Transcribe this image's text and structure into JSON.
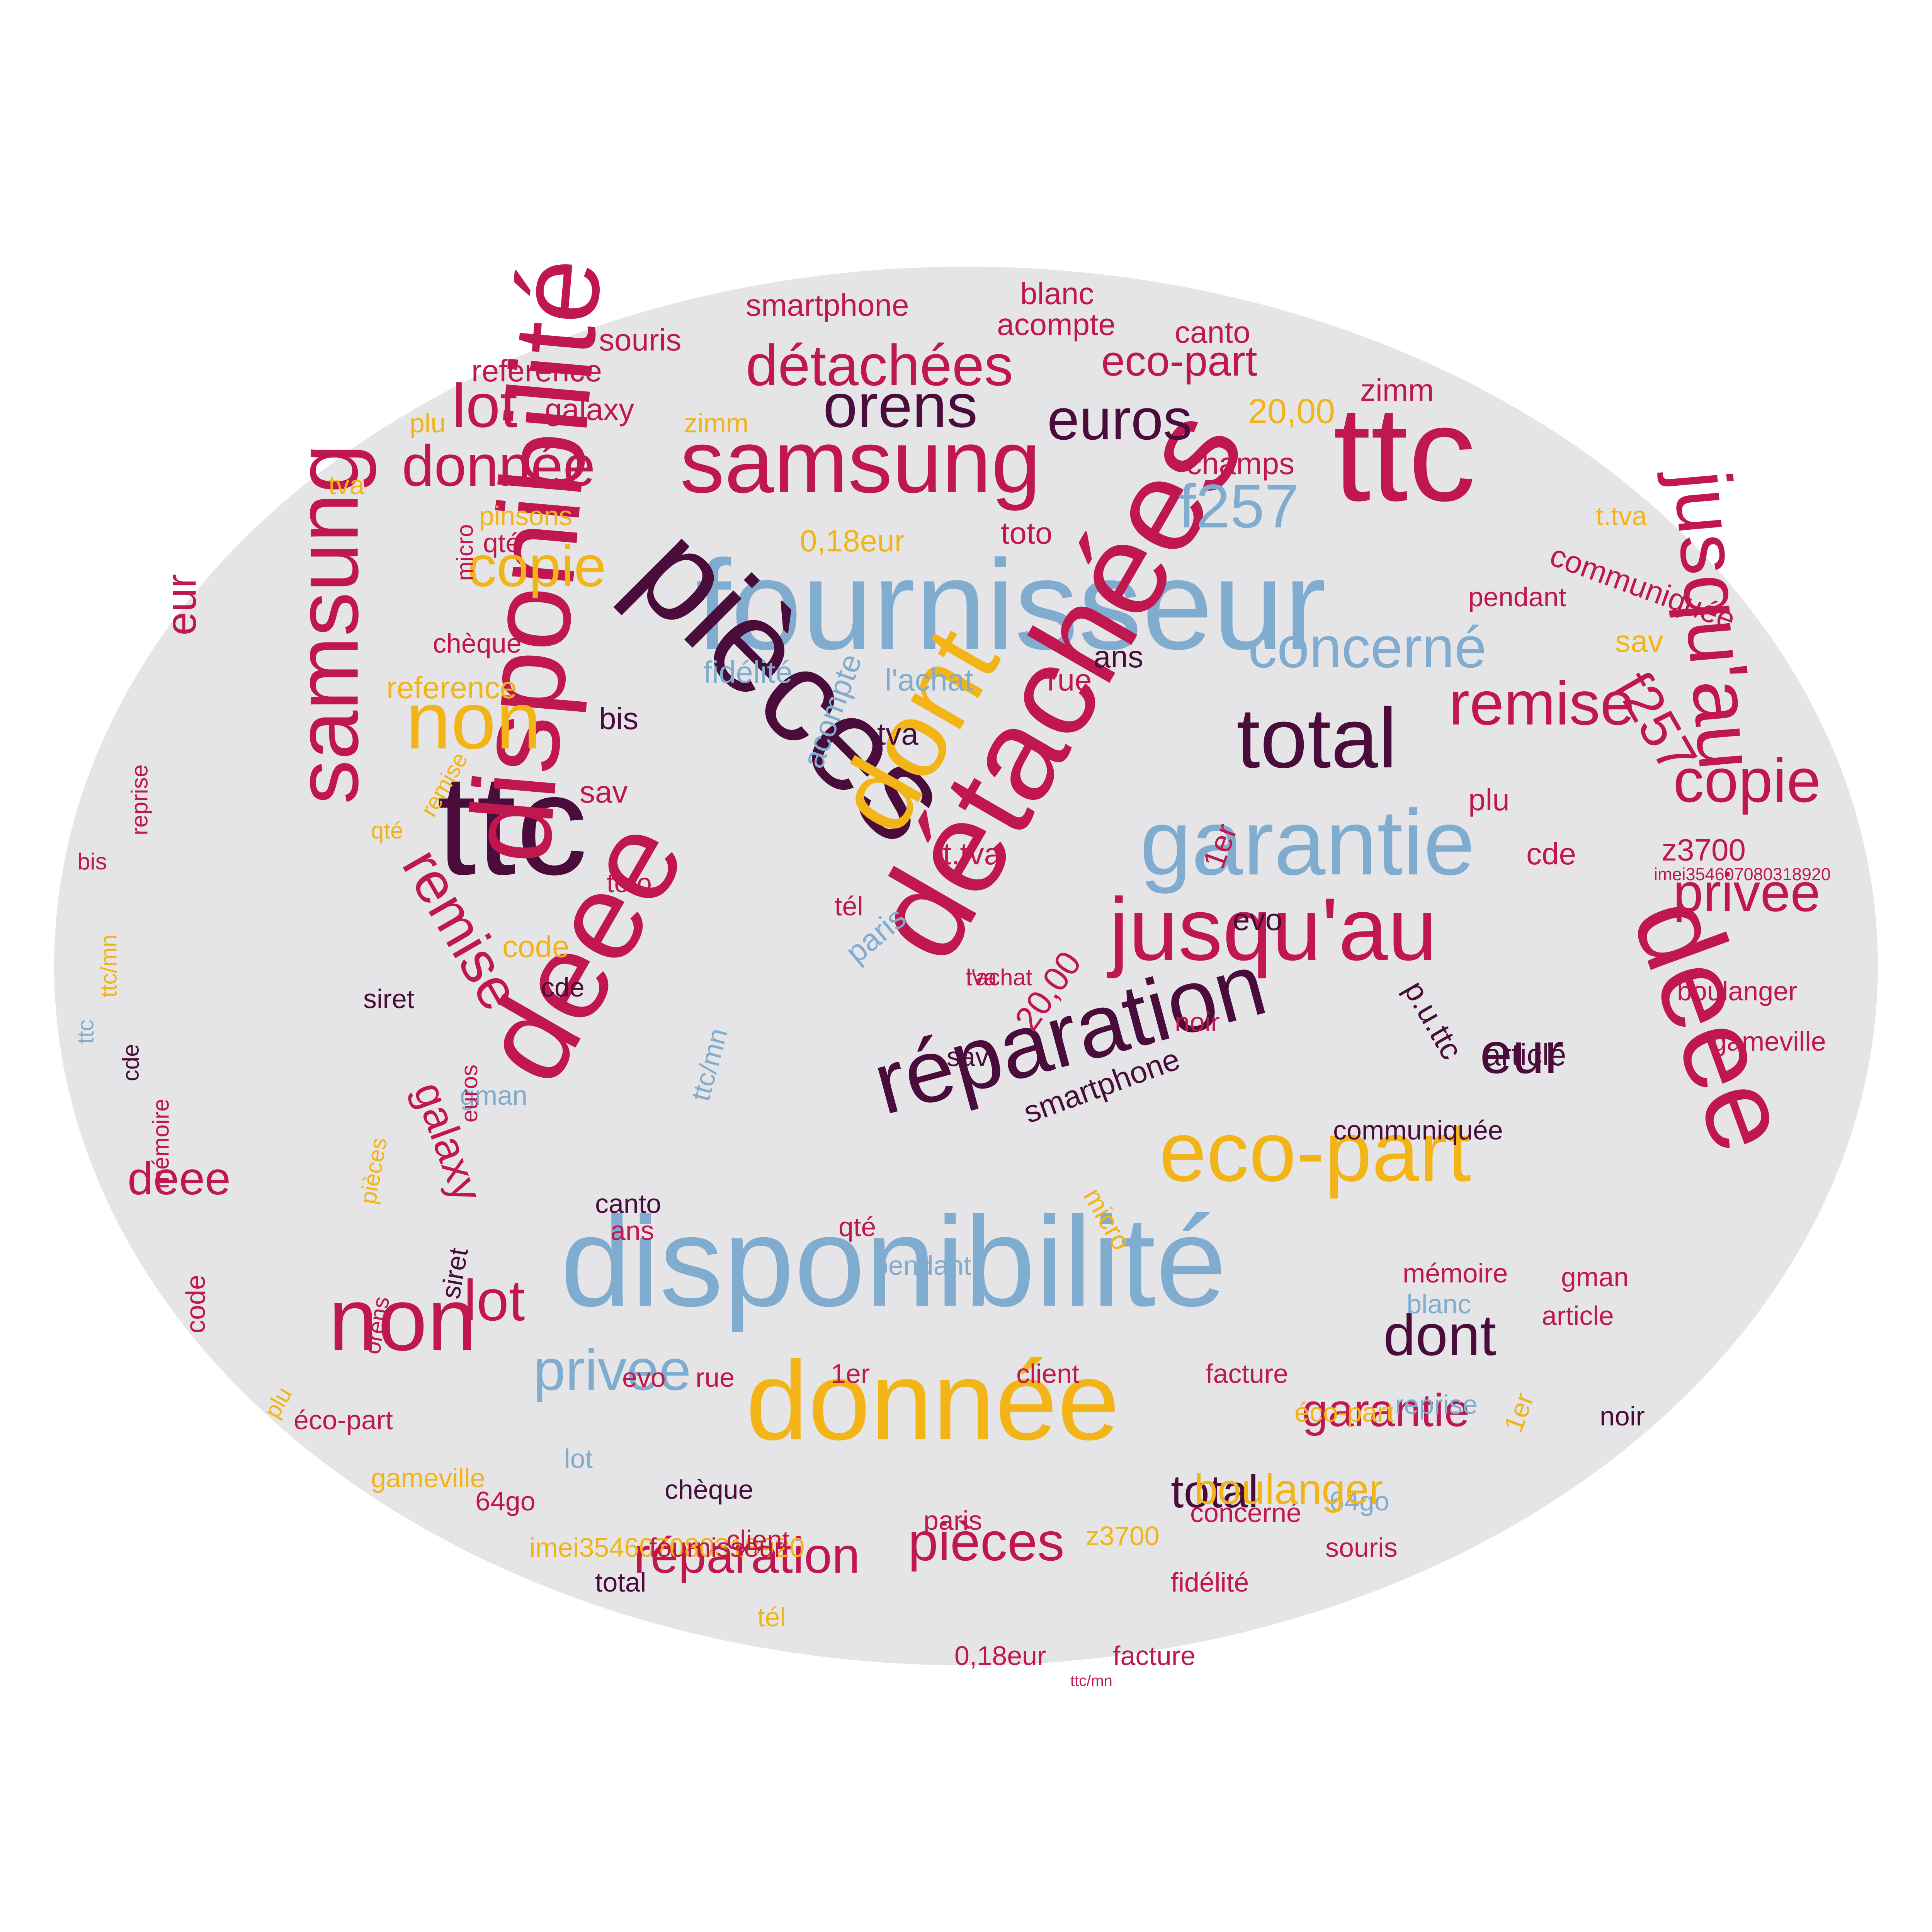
{
  "palette": {
    "background": "#ffffff",
    "ellipse_fill": "#e5e5e7",
    "crimson": "#c0174f",
    "plum": "#4a0c3b",
    "gold": "#f2b417",
    "steel_blue": "#80adcf"
  },
  "words": [
    {
      "text": "fournisseur",
      "color": "steel_blue",
      "weight": 330,
      "rotated": false
    },
    {
      "text": "disponibilité",
      "color": "steel_blue",
      "weight": 330,
      "rotated": false
    },
    {
      "text": "donnée",
      "color": "gold",
      "weight": 290,
      "rotated": false
    },
    {
      "text": "ttc",
      "color": "plum",
      "weight": 370,
      "rotated": false
    },
    {
      "text": "ttc",
      "color": "crimson",
      "weight": 350,
      "rotated": false
    },
    {
      "text": "pièces",
      "color": "plum",
      "weight": 340,
      "rotated": true
    },
    {
      "text": "détachées",
      "color": "crimson",
      "weight": 340,
      "rotated": true
    },
    {
      "text": "dont",
      "color": "gold",
      "weight": 280,
      "rotated": true
    },
    {
      "text": "deee",
      "color": "crimson",
      "weight": 320,
      "rotated": true
    },
    {
      "text": "deee",
      "color": "crimson",
      "weight": 300,
      "rotated": true
    },
    {
      "text": "disponibilité",
      "color": "crimson",
      "weight": 300,
      "rotated": true
    },
    {
      "text": "samsung",
      "color": "crimson",
      "weight": 230,
      "rotated": true
    },
    {
      "text": "samsung",
      "color": "crimson",
      "weight": 230,
      "rotated": false
    },
    {
      "text": "réparation",
      "color": "plum",
      "weight": 230,
      "rotated": true
    },
    {
      "text": "jusqu'au",
      "color": "crimson",
      "weight": 230,
      "rotated": false
    },
    {
      "text": "jusqu'au",
      "color": "crimson",
      "weight": 210,
      "rotated": true
    },
    {
      "text": "garantie",
      "color": "steel_blue",
      "weight": 240,
      "rotated": false
    },
    {
      "text": "eco-part",
      "color": "gold",
      "weight": 220,
      "rotated": false
    },
    {
      "text": "total",
      "color": "plum",
      "weight": 220,
      "rotated": false
    },
    {
      "text": "non",
      "color": "gold",
      "weight": 210,
      "rotated": false
    },
    {
      "text": "non",
      "color": "crimson",
      "weight": 230,
      "rotated": false
    },
    {
      "text": "orens",
      "color": "plum",
      "weight": 160,
      "rotated": false
    },
    {
      "text": "euros",
      "color": "plum",
      "weight": 150,
      "rotated": false
    },
    {
      "text": "détachées",
      "color": "crimson",
      "weight": 150,
      "rotated": false
    },
    {
      "text": "concerné",
      "color": "steel_blue",
      "weight": 150,
      "rotated": false
    },
    {
      "text": "f257",
      "color": "steel_blue",
      "weight": 160,
      "rotated": false
    },
    {
      "text": "lot",
      "color": "crimson",
      "weight": 160,
      "rotated": false
    },
    {
      "text": "donnée",
      "color": "crimson",
      "weight": 150,
      "rotated": false
    },
    {
      "text": "copie",
      "color": "gold",
      "weight": 150,
      "rotated": false
    },
    {
      "text": "remise",
      "color": "crimson",
      "weight": 160,
      "rotated": false
    },
    {
      "text": "copie",
      "color": "crimson",
      "weight": 160,
      "rotated": false
    },
    {
      "text": "privee",
      "color": "crimson",
      "weight": 140,
      "rotated": false
    },
    {
      "text": "privee",
      "color": "steel_blue",
      "weight": 150,
      "rotated": false
    },
    {
      "text": "remise",
      "color": "crimson",
      "weight": 150,
      "rotated": true
    },
    {
      "text": "eur",
      "color": "plum",
      "weight": 150,
      "rotated": false
    },
    {
      "text": "lot",
      "color": "crimson",
      "weight": 150,
      "rotated": false
    },
    {
      "text": "dont",
      "color": "plum",
      "weight": 150,
      "rotated": false
    },
    {
      "text": "garantie",
      "color": "crimson",
      "weight": 120,
      "rotated": false
    },
    {
      "text": "f257",
      "color": "crimson",
      "weight": 140,
      "rotated": true
    },
    {
      "text": "pièces",
      "color": "crimson",
      "weight": 140,
      "rotated": false
    },
    {
      "text": "réparation",
      "color": "crimson",
      "weight": 130,
      "rotated": false
    },
    {
      "text": "galaxy",
      "color": "crimson",
      "weight": 110,
      "rotated": true
    },
    {
      "text": "eur",
      "color": "crimson",
      "weight": 110,
      "rotated": true
    },
    {
      "text": "total",
      "color": "plum",
      "weight": 120,
      "rotated": false
    },
    {
      "text": "deee",
      "color": "crimson",
      "weight": 120,
      "rotated": false
    },
    {
      "text": "smartphone",
      "color": "crimson",
      "weight": 80,
      "rotated": false
    },
    {
      "text": "blanc",
      "color": "crimson",
      "weight": 80,
      "rotated": false
    },
    {
      "text": "souris",
      "color": "crimson",
      "weight": 80,
      "rotated": false
    },
    {
      "text": "acompte",
      "color": "crimson",
      "weight": 80,
      "rotated": false
    },
    {
      "text": "canto",
      "color": "crimson",
      "weight": 80,
      "rotated": false
    },
    {
      "text": "reference",
      "color": "crimson",
      "weight": 80,
      "rotated": false
    },
    {
      "text": "eco-part",
      "color": "crimson",
      "weight": 110,
      "rotated": false
    },
    {
      "text": "20,00",
      "color": "gold",
      "weight": 90,
      "rotated": false
    },
    {
      "text": "zimm",
      "color": "crimson",
      "weight": 80,
      "rotated": false
    },
    {
      "text": "galaxy",
      "color": "crimson",
      "weight": 80,
      "rotated": false
    },
    {
      "text": "plu",
      "color": "gold",
      "weight": 70,
      "rotated": false
    },
    {
      "text": "zimm",
      "color": "gold",
      "weight": 70,
      "rotated": false
    },
    {
      "text": "champs",
      "color": "crimson",
      "weight": 80,
      "rotated": false
    },
    {
      "text": "tva",
      "color": "gold",
      "weight": 70,
      "rotated": false
    },
    {
      "text": "pinsons",
      "color": "gold",
      "weight": 70,
      "rotated": false
    },
    {
      "text": "qté",
      "color": "crimson",
      "weight": 70,
      "rotated": false
    },
    {
      "text": "0,18eur",
      "color": "gold",
      "weight": 80,
      "rotated": false
    },
    {
      "text": "toto",
      "color": "crimson",
      "weight": 80,
      "rotated": false
    },
    {
      "text": "t.tva",
      "color": "gold",
      "weight": 70,
      "rotated": false
    },
    {
      "text": "communiquée",
      "color": "crimson",
      "weight": 80,
      "rotated": true
    },
    {
      "text": "pendant",
      "color": "crimson",
      "weight": 70,
      "rotated": false
    },
    {
      "text": "sav",
      "color": "gold",
      "weight": 80,
      "rotated": false
    },
    {
      "text": "chèque",
      "color": "crimson",
      "weight": 70,
      "rotated": false
    },
    {
      "text": "reference",
      "color": "gold",
      "weight": 80,
      "rotated": false
    },
    {
      "text": "fidélité",
      "color": "steel_blue",
      "weight": 80,
      "rotated": false
    },
    {
      "text": "acompte",
      "color": "steel_blue",
      "weight": 80,
      "rotated": true
    },
    {
      "text": "l'achat",
      "color": "steel_blue",
      "weight": 80,
      "rotated": false
    },
    {
      "text": "rue",
      "color": "crimson",
      "weight": 80,
      "rotated": false
    },
    {
      "text": "ans",
      "color": "plum",
      "weight": 80,
      "rotated": false
    },
    {
      "text": "tva",
      "color": "plum",
      "weight": 80,
      "rotated": false
    },
    {
      "text": "bis",
      "color": "plum",
      "weight": 80,
      "rotated": false
    },
    {
      "text": "sav",
      "color": "crimson",
      "weight": 80,
      "rotated": false
    },
    {
      "text": "plu",
      "color": "crimson",
      "weight": 80,
      "rotated": false
    },
    {
      "text": "cde",
      "color": "crimson",
      "weight": 80,
      "rotated": false
    },
    {
      "text": "z3700",
      "color": "crimson",
      "weight": 80,
      "rotated": false
    },
    {
      "text": "imei354607080318920",
      "color": "crimson",
      "weight": 45,
      "rotated": false
    },
    {
      "text": "t.tva",
      "color": "crimson",
      "weight": 80,
      "rotated": false
    },
    {
      "text": "1er",
      "color": "crimson",
      "weight": 80,
      "rotated": true
    },
    {
      "text": "toto",
      "color": "crimson",
      "weight": 70,
      "rotated": false
    },
    {
      "text": "tél",
      "color": "crimson",
      "weight": 70,
      "rotated": false
    },
    {
      "text": "paris",
      "color": "steel_blue",
      "weight": 80,
      "rotated": true
    },
    {
      "text": "code",
      "color": "gold",
      "weight": 80,
      "rotated": false
    },
    {
      "text": "evo",
      "color": "plum",
      "weight": 80,
      "rotated": false
    },
    {
      "text": "siret",
      "color": "plum",
      "weight": 70,
      "rotated": false
    },
    {
      "text": "cde",
      "color": "plum",
      "weight": 70,
      "rotated": false
    },
    {
      "text": "20,00",
      "color": "crimson",
      "weight": 90,
      "rotated": true
    },
    {
      "text": "noir",
      "color": "crimson",
      "weight": 70,
      "rotated": false
    },
    {
      "text": "p.u.ttc",
      "color": "plum",
      "weight": 80,
      "rotated": true
    },
    {
      "text": "article",
      "color": "plum",
      "weight": 80,
      "rotated": false
    },
    {
      "text": "boulanger",
      "color": "crimson",
      "weight": 70,
      "rotated": false
    },
    {
      "text": "gameville",
      "color": "crimson",
      "weight": 70,
      "rotated": false
    },
    {
      "text": "smartphone",
      "color": "plum",
      "weight": 80,
      "rotated": true
    },
    {
      "text": "sav",
      "color": "plum",
      "weight": 70,
      "rotated": false
    },
    {
      "text": "communiquée",
      "color": "plum",
      "weight": 70,
      "rotated": false
    },
    {
      "text": "canto",
      "color": "plum",
      "weight": 70,
      "rotated": false
    },
    {
      "text": "ans",
      "color": "crimson",
      "weight": 70,
      "rotated": false
    },
    {
      "text": "gman",
      "color": "steel_blue",
      "weight": 70,
      "rotated": false
    },
    {
      "text": "qté",
      "color": "crimson",
      "weight": 70,
      "rotated": false
    },
    {
      "text": "pendant",
      "color": "steel_blue",
      "weight": 70,
      "rotated": false
    },
    {
      "text": "micro",
      "color": "gold",
      "weight": 70,
      "rotated": true
    },
    {
      "text": "ttc/mn",
      "color": "steel_blue",
      "weight": 70,
      "rotated": true
    },
    {
      "text": "mémoire",
      "color": "crimson",
      "weight": 70,
      "rotated": false
    },
    {
      "text": "gman",
      "color": "crimson",
      "weight": 70,
      "rotated": false
    },
    {
      "text": "blanc",
      "color": "steel_blue",
      "weight": 70,
      "rotated": false
    },
    {
      "text": "article",
      "color": "crimson",
      "weight": 70,
      "rotated": false
    },
    {
      "text": "siret",
      "color": "plum",
      "weight": 70,
      "rotated": true
    },
    {
      "text": "evo",
      "color": "crimson",
      "weight": 70,
      "rotated": false
    },
    {
      "text": "rue",
      "color": "crimson",
      "weight": 70,
      "rotated": false
    },
    {
      "text": "1er",
      "color": "crimson",
      "weight": 70,
      "rotated": false
    },
    {
      "text": "client",
      "color": "crimson",
      "weight": 70,
      "rotated": false
    },
    {
      "text": "facture",
      "color": "crimson",
      "weight": 70,
      "rotated": false
    },
    {
      "text": "éco-part",
      "color": "gold",
      "weight": 70,
      "rotated": false
    },
    {
      "text": "reprise",
      "color": "steel_blue",
      "weight": 70,
      "rotated": false
    },
    {
      "text": "noir",
      "color": "plum",
      "weight": 70,
      "rotated": false
    },
    {
      "text": "1er",
      "color": "gold",
      "weight": 70,
      "rotated": false
    },
    {
      "text": "éco-part",
      "color": "crimson",
      "weight": 70,
      "rotated": true
    },
    {
      "text": "lot",
      "color": "steel_blue",
      "weight": 70,
      "rotated": false
    },
    {
      "text": "gameville",
      "color": "gold",
      "weight": 70,
      "rotated": false
    },
    {
      "text": "chèque",
      "color": "plum",
      "weight": 70,
      "rotated": false
    },
    {
      "text": "64go",
      "color": "steel_blue",
      "weight": 70,
      "rotated": false
    },
    {
      "text": "64go",
      "color": "crimson",
      "weight": 70,
      "rotated": false
    },
    {
      "text": "concerné",
      "color": "crimson",
      "weight": 70,
      "rotated": false
    },
    {
      "text": "imei354607080318920",
      "color": "gold",
      "weight": 70,
      "rotated": false
    },
    {
      "text": "fournisseur",
      "color": "crimson",
      "weight": 70,
      "rotated": false
    },
    {
      "text": "client",
      "color": "crimson",
      "weight": 70,
      "rotated": false
    },
    {
      "text": "paris",
      "color": "crimson",
      "weight": 70,
      "rotated": false
    },
    {
      "text": "z3700",
      "color": "gold",
      "weight": 70,
      "rotated": false
    },
    {
      "text": "boulanger",
      "color": "gold",
      "weight": 70,
      "rotated": false
    },
    {
      "text": "souris",
      "color": "crimson",
      "weight": 70,
      "rotated": false
    },
    {
      "text": "total",
      "color": "plum",
      "weight": 110,
      "rotated": false
    },
    {
      "text": "fidélité",
      "color": "crimson",
      "weight": 70,
      "rotated": false
    },
    {
      "text": "tél",
      "color": "gold",
      "weight": 70,
      "rotated": false
    },
    {
      "text": "0,18eur",
      "color": "crimson",
      "weight": 70,
      "rotated": false
    },
    {
      "text": "facture",
      "color": "crimson",
      "weight": 70,
      "rotated": false
    },
    {
      "text": "ttc/mn",
      "color": "crimson",
      "weight": 70,
      "rotated": false
    },
    {
      "text": "code",
      "color": "crimson",
      "weight": 70,
      "rotated": false
    },
    {
      "text": "cde",
      "color": "plum",
      "weight": 40,
      "rotated": false
    },
    {
      "text": "ttc",
      "color": "steel_blue",
      "weight": 70,
      "rotated": true
    },
    {
      "text": "mémoire",
      "color": "crimson",
      "weight": 60,
      "rotated": true
    },
    {
      "text": "ttc/mn",
      "color": "gold",
      "weight": 60,
      "rotated": true
    },
    {
      "text": "bis",
      "color": "crimson",
      "weight": 60,
      "rotated": true
    },
    {
      "text": "reprise",
      "color": "crimson",
      "weight": 60,
      "rotated": true
    },
    {
      "text": "qté",
      "color": "gold",
      "weight": 60,
      "rotated": false
    },
    {
      "text": "remise",
      "color": "gold",
      "weight": 60,
      "rotated": true
    },
    {
      "text": "plu",
      "color": "gold",
      "weight": 60,
      "rotated": false
    },
    {
      "text": "orens",
      "color": "crimson",
      "weight": 60,
      "rotated": true
    },
    {
      "text": "pièces",
      "color": "gold",
      "weight": 60,
      "rotated": true
    },
    {
      "text": "euros",
      "color": "crimson",
      "weight": 60,
      "rotated": true
    },
    {
      "text": "micro",
      "color": "crimson",
      "weight": 60,
      "rotated": true
    },
    {
      "text": "tva",
      "color": "crimson",
      "weight": 60,
      "rotated": true
    },
    {
      "text": "l'achat",
      "color": "crimson",
      "weight": 60,
      "rotated": true
    }
  ]
}
